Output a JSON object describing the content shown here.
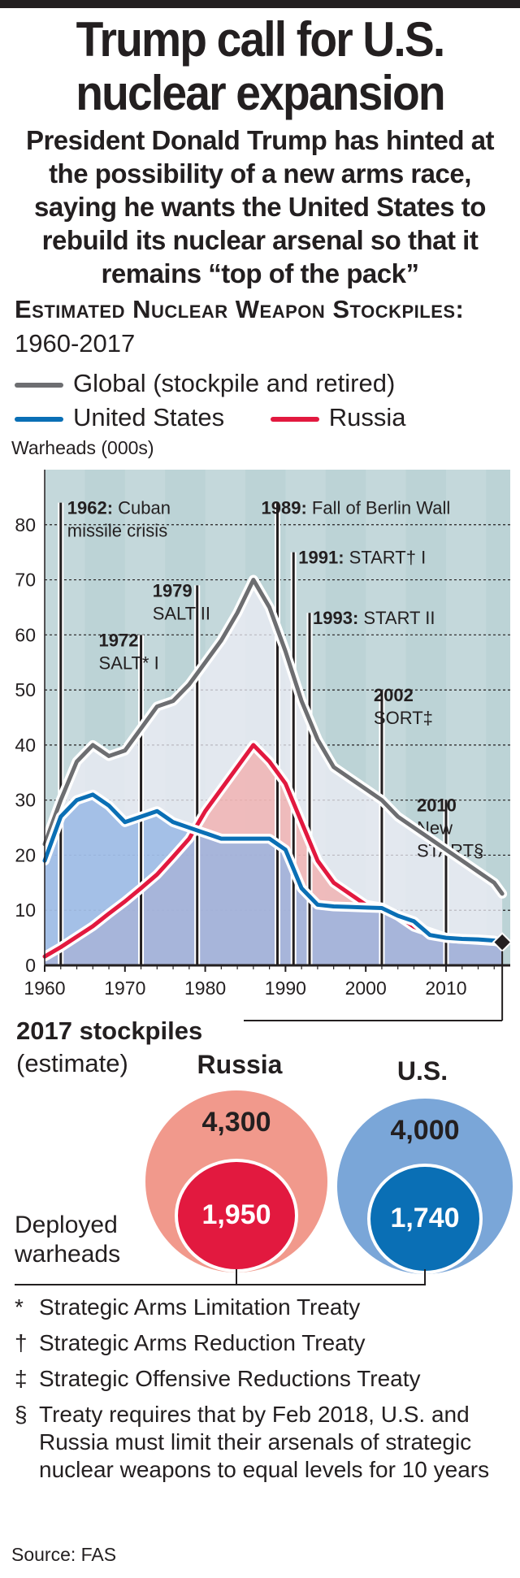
{
  "title_line1": "Trump call for U.S.",
  "title_line2": "nuclear expansion",
  "subtitle": "President Donald Trump has hinted at the possibility of a new arms race, saying he wants the United States to rebuild its nuclear arsenal so that it remains “top of the pack”",
  "chart_heading": {
    "bold": "Estimated Nuclear Weapon Stockpiles:",
    "plain": " 1960-2017"
  },
  "legend": {
    "global": "Global (stockpile and retired)",
    "us": "United States",
    "russia": "Russia"
  },
  "colors": {
    "global": "#6d6e71",
    "us": "#0a6fb5",
    "russia": "#e2193f",
    "plot_bg": "#bcd3d6",
    "ink": "#231f20"
  },
  "chart_data": {
    "type": "line",
    "title": "Estimated Nuclear Weapon Stockpiles: 1960-2017",
    "ylabel": "Warheads (000s)",
    "xlabel": "",
    "xlim": [
      1960,
      2018
    ],
    "ylim": [
      0,
      90
    ],
    "xticks": [
      1960,
      1970,
      1980,
      1990,
      2000,
      2010
    ],
    "yticks": [
      0,
      10,
      20,
      30,
      40,
      50,
      60,
      70,
      80
    ],
    "series": [
      {
        "name": "Global (stockpile and retired)",
        "key": "global",
        "x": [
          1960,
          1962,
          1964,
          1966,
          1968,
          1970,
          1972,
          1974,
          1976,
          1978,
          1980,
          1982,
          1984,
          1986,
          1988,
          1990,
          1992,
          1994,
          1996,
          1998,
          2000,
          2002,
          2004,
          2006,
          2008,
          2010,
          2012,
          2014,
          2016,
          2017
        ],
        "y": [
          22,
          30,
          37,
          40,
          38,
          39,
          43,
          47,
          48,
          51,
          55,
          59,
          64,
          70,
          65,
          57,
          48,
          41,
          36,
          34,
          32,
          30,
          27,
          25,
          23,
          21,
          19,
          17,
          15,
          13
        ]
      },
      {
        "name": "United States",
        "key": "us",
        "x": [
          1960,
          1962,
          1964,
          1966,
          1968,
          1970,
          1972,
          1974,
          1976,
          1978,
          1980,
          1982,
          1984,
          1986,
          1988,
          1990,
          1992,
          1994,
          1996,
          1998,
          2000,
          2002,
          2004,
          2006,
          2008,
          2010,
          2012,
          2014,
          2016,
          2017
        ],
        "y": [
          19,
          27,
          30,
          31,
          29,
          26,
          27,
          28,
          26,
          25,
          24,
          23,
          23,
          23,
          23,
          21,
          14,
          11,
          10.7,
          10.6,
          10.5,
          10.4,
          9,
          8,
          5.5,
          5,
          4.8,
          4.7,
          4.5,
          4
        ]
      },
      {
        "name": "Russia",
        "key": "russia",
        "x": [
          1960,
          1962,
          1964,
          1966,
          1968,
          1970,
          1972,
          1974,
          1976,
          1978,
          1980,
          1982,
          1984,
          1986,
          1988,
          1990,
          1992,
          1994,
          1996,
          1998,
          2000,
          2002,
          2004,
          2006,
          2008,
          2010,
          2012,
          2014,
          2016,
          2017
        ],
        "y": [
          1.6,
          3.3,
          5.2,
          7.1,
          9.4,
          11.6,
          14,
          16.5,
          19.7,
          23,
          28,
          32,
          36,
          40,
          37,
          33,
          26,
          19,
          15,
          13,
          11,
          10.5,
          9,
          7,
          6,
          5,
          4.8,
          4.6,
          4.4,
          4.3
        ]
      }
    ],
    "annotations": [
      {
        "year": 1962,
        "top_value": 84,
        "bold": "1962:",
        "text": " Cuban",
        "line2": "missile crisis"
      },
      {
        "year": 1972,
        "top_value": 60,
        "bold": "1972",
        "text": "",
        "line2": "SALT* I"
      },
      {
        "year": 1979,
        "top_value": 69,
        "bold": "1979",
        "text": "",
        "line2": "SALT II"
      },
      {
        "year": 1989,
        "top_value": 84,
        "bold": "1989:",
        "text": " Fall of Berlin Wall",
        "line2": ""
      },
      {
        "year": 1991,
        "top_value": 75,
        "bold": "1991:",
        "text": " START† I",
        "line2": ""
      },
      {
        "year": 1993,
        "top_value": 64,
        "bold": "1993:",
        "text": " START II",
        "line2": ""
      },
      {
        "year": 2002,
        "top_value": 50,
        "bold": "2002",
        "text": "",
        "line2": "SORT‡"
      },
      {
        "year": 2010,
        "top_value": 30,
        "bold": "2010",
        "text": "",
        "line2": "New",
        "line3": "START§"
      }
    ]
  },
  "stockpiles": {
    "label": "2017 stockpiles",
    "sub": "(estimate)",
    "deployed_label": "Deployed warheads",
    "russia": {
      "name": "Russia",
      "total": "4,300",
      "deployed": "1,950"
    },
    "us": {
      "name": "U.S.",
      "total": "4,000",
      "deployed": "1,740"
    }
  },
  "notes": [
    {
      "sym": "*",
      "text": "Strategic Arms Limitation Treaty"
    },
    {
      "sym": "†",
      "text": "Strategic Arms Reduction Treaty"
    },
    {
      "sym": "‡",
      "text": "Strategic Offensive Reductions Treaty"
    },
    {
      "sym": "§",
      "text": "Treaty requires that by Feb 2018, U.S. and Russia must limit their arsenals of strategic nuclear weapons to equal levels for 10 years"
    }
  ],
  "source": "Source: FAS"
}
